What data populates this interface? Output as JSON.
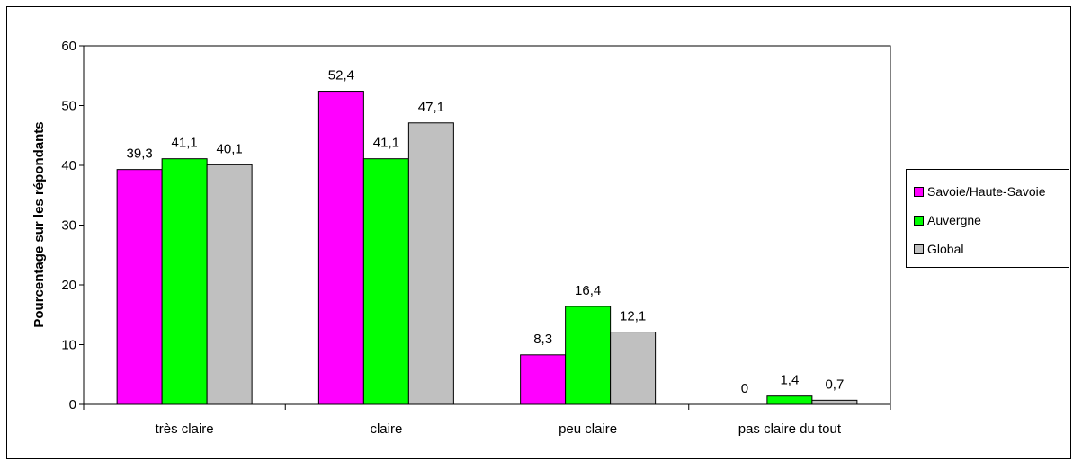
{
  "chart_data": {
    "type": "bar",
    "ylabel": "Pourcentage sur les répondants",
    "xlabel": "",
    "ylim": [
      0,
      60
    ],
    "yticks": [
      0,
      10,
      20,
      30,
      40,
      50,
      60
    ],
    "categories": [
      "très claire",
      "claire",
      "peu claire",
      "pas claire du tout"
    ],
    "series": [
      {
        "name": "Savoie/Haute-Savoie",
        "color": "#FF00FF",
        "values": [
          39.3,
          52.4,
          8.3,
          0
        ],
        "labels": [
          "39,3",
          "52,4",
          "8,3",
          "0"
        ]
      },
      {
        "name": "Auvergne",
        "color": "#00FF00",
        "values": [
          41.1,
          41.1,
          16.4,
          1.4
        ],
        "labels": [
          "41,1",
          "41,1",
          "16,4",
          "1,4"
        ]
      },
      {
        "name": "Global",
        "color": "#C0C0C0",
        "values": [
          40.1,
          47.1,
          12.1,
          0.7
        ],
        "labels": [
          "40,1",
          "47,1",
          "12,1",
          "0,7"
        ]
      }
    ],
    "grid": false,
    "legend_position": "right"
  }
}
